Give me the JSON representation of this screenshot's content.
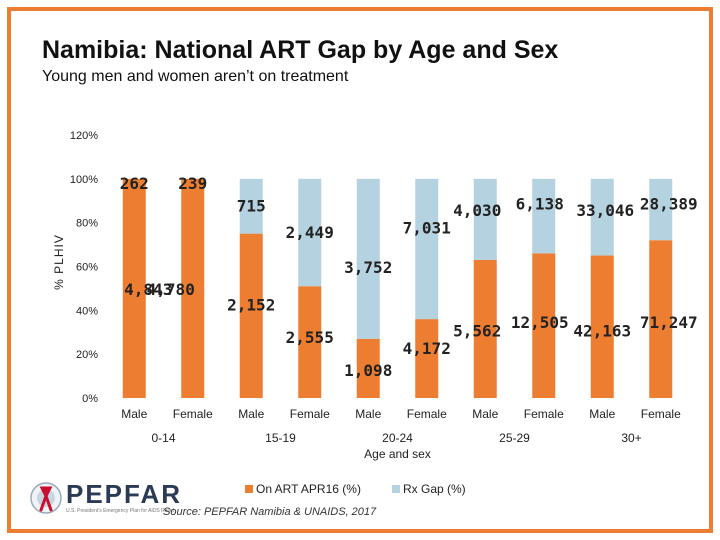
{
  "title": "Namibia: National ART Gap by Age and Sex",
  "subtitle": "Young men and women aren’t on treatment",
  "source": "Source: PEPFAR Namibia & UNAIDS, 2017",
  "logo": {
    "name": "PEPFAR",
    "tagline": "U.S. President's Emergency Plan for AIDS Relief"
  },
  "colors": {
    "border": "#ED7D31",
    "on_art": "#ED7D31",
    "gap": "#B4D2DF"
  },
  "chart_data": {
    "type": "bar",
    "stacked": true,
    "title": "Namibia: National ART Gap by Age and Sex",
    "ylabel": "% PLHIV",
    "xlabel": "Age and sex",
    "ylim": [
      0,
      120
    ],
    "yticks": [
      "0%",
      "20%",
      "40%",
      "60%",
      "80%",
      "100%",
      "120%"
    ],
    "categories": [
      "Male",
      "Female",
      "Male",
      "Female",
      "Male",
      "Female",
      "Male",
      "Female",
      "Male",
      "Female"
    ],
    "groups": [
      {
        "label": "0-14"
      },
      {
        "label": "15-19"
      },
      {
        "label": "20-24\nAge and sex"
      },
      {
        "label": "25-29"
      },
      {
        "label": "30+"
      }
    ],
    "series": [
      {
        "name": "On ART APR16 (%)",
        "values": [
          100,
          100,
          75,
          51,
          27,
          36,
          63,
          66,
          65,
          72
        ],
        "labels": [
          "4,843",
          "4,780",
          "2,152",
          "2,555",
          "1,098",
          "4,172",
          "5,562",
          "12,505",
          "42,163",
          "71,247"
        ]
      },
      {
        "name": "Rx Gap (%)",
        "values": [
          0,
          0,
          25,
          49,
          73,
          64,
          37,
          34,
          35,
          28
        ],
        "labels": [
          "262",
          "239",
          "715",
          "2,449",
          "3,752",
          "7,031",
          "4,030",
          "6,138",
          "33,046",
          "28,389"
        ]
      }
    ],
    "legend": "bottom"
  }
}
